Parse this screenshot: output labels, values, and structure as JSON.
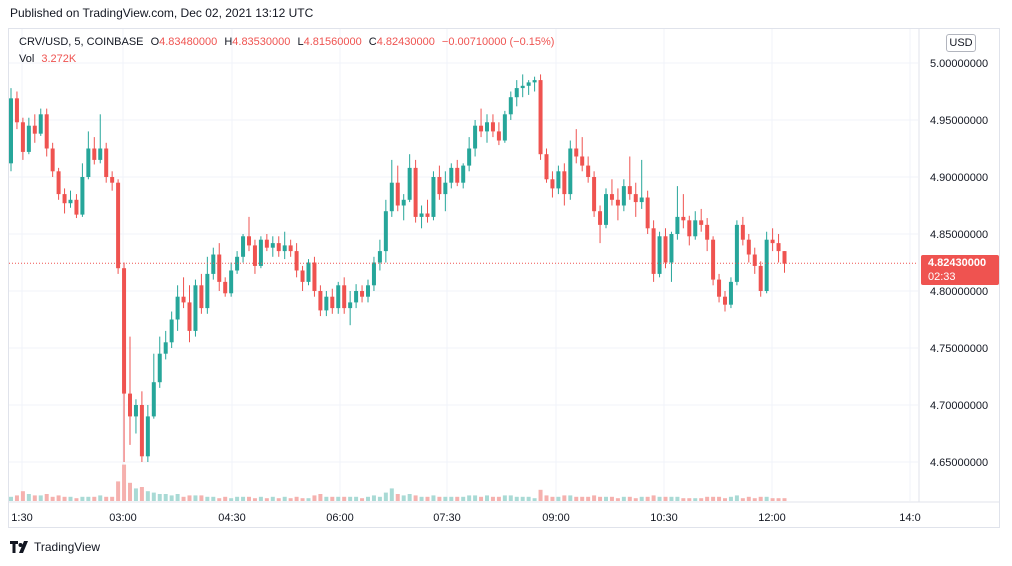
{
  "header": {
    "published": "Published on TradingView.com, Dec 02, 2021 13:12 UTC"
  },
  "legend": {
    "symbol": "CRV/USD, 5, COINBASE",
    "open_label": "O",
    "open": "4.83480000",
    "high_label": "H",
    "high": "4.83530000",
    "low_label": "L",
    "low": "4.81560000",
    "close_label": "C",
    "close": "4.82430000",
    "change": "−0.00710000 (−0.15%)",
    "vol_label": "Vol",
    "vol": "3.272K"
  },
  "currency_button": "USD",
  "last_price": {
    "value": "4.82430000",
    "countdown": "02:33"
  },
  "footer": {
    "brand": "TradingView"
  },
  "colors": {
    "up": "#26a69a",
    "down": "#ef5350",
    "vol_up": "#a9dad5",
    "vol_down": "#f5b1ae",
    "grid": "#f0f3fa"
  },
  "chart_data": {
    "type": "candlestick",
    "ylim": [
      4.6,
      5.02
    ],
    "y_ticks": [
      "5.00000000",
      "4.95000000",
      "4.90000000",
      "4.85000000",
      "4.80000000",
      "4.75000000",
      "4.70000000",
      "4.65000000"
    ],
    "x_ticks": [
      "1:30",
      "03:00",
      "04:30",
      "06:00",
      "07:30",
      "09:00",
      "10:30",
      "12:00",
      "14:0"
    ],
    "candles": [
      {
        "o": 4.912,
        "h": 4.978,
        "l": 4.905,
        "c": 4.969,
        "v": 0.3
      },
      {
        "o": 4.969,
        "h": 4.975,
        "l": 4.942,
        "c": 4.948,
        "v": 0.4
      },
      {
        "o": 4.948,
        "h": 4.952,
        "l": 4.915,
        "c": 4.922,
        "v": 0.7
      },
      {
        "o": 4.922,
        "h": 4.952,
        "l": 4.92,
        "c": 4.945,
        "v": 0.5
      },
      {
        "o": 4.945,
        "h": 4.955,
        "l": 4.93,
        "c": 4.938,
        "v": 0.4
      },
      {
        "o": 4.938,
        "h": 4.96,
        "l": 4.936,
        "c": 4.955,
        "v": 0.4
      },
      {
        "o": 4.955,
        "h": 4.96,
        "l": 4.918,
        "c": 4.925,
        "v": 0.5
      },
      {
        "o": 4.925,
        "h": 4.93,
        "l": 4.9,
        "c": 4.905,
        "v": 0.3
      },
      {
        "o": 4.905,
        "h": 4.908,
        "l": 4.88,
        "c": 4.885,
        "v": 0.4
      },
      {
        "o": 4.885,
        "h": 4.89,
        "l": 4.868,
        "c": 4.877,
        "v": 0.3
      },
      {
        "o": 4.877,
        "h": 4.888,
        "l": 4.873,
        "c": 4.88,
        "v": 0.3
      },
      {
        "o": 4.88,
        "h": 4.885,
        "l": 4.864,
        "c": 4.867,
        "v": 0.2
      },
      {
        "o": 4.867,
        "h": 4.912,
        "l": 4.865,
        "c": 4.9,
        "v": 0.3
      },
      {
        "o": 4.9,
        "h": 4.94,
        "l": 4.898,
        "c": 4.925,
        "v": 0.3
      },
      {
        "o": 4.925,
        "h": 4.935,
        "l": 4.911,
        "c": 4.915,
        "v": 0.3
      },
      {
        "o": 4.915,
        "h": 4.955,
        "l": 4.912,
        "c": 4.925,
        "v": 0.4
      },
      {
        "o": 4.925,
        "h": 4.93,
        "l": 4.895,
        "c": 4.9,
        "v": 0.3
      },
      {
        "o": 4.9,
        "h": 4.905,
        "l": 4.888,
        "c": 4.895,
        "v": 0.3
      },
      {
        "o": 4.895,
        "h": 4.898,
        "l": 4.815,
        "c": 4.82,
        "v": 1.4
      },
      {
        "o": 4.82,
        "h": 4.825,
        "l": 4.65,
        "c": 4.71,
        "v": 2.6
      },
      {
        "o": 4.71,
        "h": 4.76,
        "l": 4.665,
        "c": 4.69,
        "v": 1.3
      },
      {
        "o": 4.69,
        "h": 4.705,
        "l": 4.675,
        "c": 4.7,
        "v": 0.9
      },
      {
        "o": 4.7,
        "h": 4.712,
        "l": 4.65,
        "c": 4.655,
        "v": 1.0
      },
      {
        "o": 4.655,
        "h": 4.7,
        "l": 4.65,
        "c": 4.69,
        "v": 0.7
      },
      {
        "o": 4.69,
        "h": 4.745,
        "l": 4.688,
        "c": 4.72,
        "v": 0.6
      },
      {
        "o": 4.72,
        "h": 4.76,
        "l": 4.715,
        "c": 4.745,
        "v": 0.5
      },
      {
        "o": 4.745,
        "h": 4.765,
        "l": 4.74,
        "c": 4.755,
        "v": 0.5
      },
      {
        "o": 4.755,
        "h": 4.782,
        "l": 4.75,
        "c": 4.775,
        "v": 0.4
      },
      {
        "o": 4.775,
        "h": 4.805,
        "l": 4.765,
        "c": 4.795,
        "v": 0.5
      },
      {
        "o": 4.795,
        "h": 4.812,
        "l": 4.785,
        "c": 4.79,
        "v": 0.3
      },
      {
        "o": 4.79,
        "h": 4.805,
        "l": 4.755,
        "c": 4.765,
        "v": 0.4
      },
      {
        "o": 4.765,
        "h": 4.81,
        "l": 4.76,
        "c": 4.805,
        "v": 0.4
      },
      {
        "o": 4.805,
        "h": 4.815,
        "l": 4.78,
        "c": 4.785,
        "v": 0.4
      },
      {
        "o": 4.785,
        "h": 4.83,
        "l": 4.78,
        "c": 4.815,
        "v": 0.3
      },
      {
        "o": 4.815,
        "h": 4.838,
        "l": 4.81,
        "c": 4.832,
        "v": 0.3
      },
      {
        "o": 4.832,
        "h": 4.842,
        "l": 4.8,
        "c": 4.808,
        "v": 0.2
      },
      {
        "o": 4.808,
        "h": 4.812,
        "l": 4.795,
        "c": 4.798,
        "v": 0.3
      },
      {
        "o": 4.798,
        "h": 4.825,
        "l": 4.795,
        "c": 4.818,
        "v": 0.2
      },
      {
        "o": 4.818,
        "h": 4.835,
        "l": 4.815,
        "c": 4.83,
        "v": 0.3
      },
      {
        "o": 4.83,
        "h": 4.85,
        "l": 4.825,
        "c": 4.848,
        "v": 0.3
      },
      {
        "o": 4.848,
        "h": 4.865,
        "l": 4.835,
        "c": 4.84,
        "v": 0.3
      },
      {
        "o": 4.84,
        "h": 4.845,
        "l": 4.815,
        "c": 4.822,
        "v": 0.2
      },
      {
        "o": 4.822,
        "h": 4.848,
        "l": 4.82,
        "c": 4.845,
        "v": 0.3
      },
      {
        "o": 4.845,
        "h": 4.85,
        "l": 4.835,
        "c": 4.838,
        "v": 0.2
      },
      {
        "o": 4.838,
        "h": 4.848,
        "l": 4.83,
        "c": 4.842,
        "v": 0.3
      },
      {
        "o": 4.842,
        "h": 4.848,
        "l": 4.83,
        "c": 4.835,
        "v": 0.2
      },
      {
        "o": 4.835,
        "h": 4.852,
        "l": 4.828,
        "c": 4.84,
        "v": 0.3
      },
      {
        "o": 4.84,
        "h": 4.845,
        "l": 4.83,
        "c": 4.835,
        "v": 0.2
      },
      {
        "o": 4.835,
        "h": 4.842,
        "l": 4.812,
        "c": 4.818,
        "v": 0.3
      },
      {
        "o": 4.818,
        "h": 4.822,
        "l": 4.8,
        "c": 4.808,
        "v": 0.2
      },
      {
        "o": 4.808,
        "h": 4.828,
        "l": 4.805,
        "c": 4.825,
        "v": 0.2
      },
      {
        "o": 4.825,
        "h": 4.83,
        "l": 4.795,
        "c": 4.8,
        "v": 0.4
      },
      {
        "o": 4.8,
        "h": 4.805,
        "l": 4.778,
        "c": 4.783,
        "v": 0.5
      },
      {
        "o": 4.783,
        "h": 4.8,
        "l": 4.778,
        "c": 4.795,
        "v": 0.3
      },
      {
        "o": 4.795,
        "h": 4.802,
        "l": 4.78,
        "c": 4.785,
        "v": 0.3
      },
      {
        "o": 4.785,
        "h": 4.808,
        "l": 4.78,
        "c": 4.805,
        "v": 0.3
      },
      {
        "o": 4.805,
        "h": 4.812,
        "l": 4.78,
        "c": 4.785,
        "v": 0.3
      },
      {
        "o": 4.785,
        "h": 4.8,
        "l": 4.77,
        "c": 4.79,
        "v": 0.3
      },
      {
        "o": 4.79,
        "h": 4.806,
        "l": 4.785,
        "c": 4.8,
        "v": 0.3
      },
      {
        "o": 4.8,
        "h": 4.805,
        "l": 4.79,
        "c": 4.795,
        "v": 0.2
      },
      {
        "o": 4.795,
        "h": 4.81,
        "l": 4.79,
        "c": 4.805,
        "v": 0.3
      },
      {
        "o": 4.805,
        "h": 4.83,
        "l": 4.8,
        "c": 4.825,
        "v": 0.4
      },
      {
        "o": 4.825,
        "h": 4.845,
        "l": 4.818,
        "c": 4.835,
        "v": 0.3
      },
      {
        "o": 4.835,
        "h": 4.88,
        "l": 4.825,
        "c": 4.87,
        "v": 0.6
      },
      {
        "o": 4.87,
        "h": 4.915,
        "l": 4.865,
        "c": 4.895,
        "v": 0.9
      },
      {
        "o": 4.895,
        "h": 4.91,
        "l": 4.87,
        "c": 4.875,
        "v": 0.5
      },
      {
        "o": 4.875,
        "h": 4.885,
        "l": 4.862,
        "c": 4.88,
        "v": 0.4
      },
      {
        "o": 4.88,
        "h": 4.92,
        "l": 4.878,
        "c": 4.908,
        "v": 0.5
      },
      {
        "o": 4.908,
        "h": 4.915,
        "l": 4.86,
        "c": 4.865,
        "v": 0.4
      },
      {
        "o": 4.865,
        "h": 4.875,
        "l": 4.855,
        "c": 4.868,
        "v": 0.3
      },
      {
        "o": 4.868,
        "h": 4.88,
        "l": 4.86,
        "c": 4.865,
        "v": 0.3
      },
      {
        "o": 4.865,
        "h": 4.905,
        "l": 4.862,
        "c": 4.9,
        "v": 0.4
      },
      {
        "o": 4.9,
        "h": 4.91,
        "l": 4.88,
        "c": 4.885,
        "v": 0.3
      },
      {
        "o": 4.885,
        "h": 4.905,
        "l": 4.87,
        "c": 4.895,
        "v": 0.3
      },
      {
        "o": 4.895,
        "h": 4.912,
        "l": 4.89,
        "c": 4.908,
        "v": 0.3
      },
      {
        "o": 4.908,
        "h": 4.915,
        "l": 4.892,
        "c": 4.895,
        "v": 0.3
      },
      {
        "o": 4.895,
        "h": 4.912,
        "l": 4.89,
        "c": 4.91,
        "v": 0.3
      },
      {
        "o": 4.91,
        "h": 4.935,
        "l": 4.905,
        "c": 4.925,
        "v": 0.4
      },
      {
        "o": 4.925,
        "h": 4.95,
        "l": 4.918,
        "c": 4.945,
        "v": 0.4
      },
      {
        "o": 4.945,
        "h": 4.96,
        "l": 4.935,
        "c": 4.94,
        "v": 0.3
      },
      {
        "o": 4.94,
        "h": 4.955,
        "l": 4.93,
        "c": 4.948,
        "v": 0.4
      },
      {
        "o": 4.948,
        "h": 4.955,
        "l": 4.935,
        "c": 4.94,
        "v": 0.3
      },
      {
        "o": 4.94,
        "h": 4.948,
        "l": 4.928,
        "c": 4.932,
        "v": 0.3
      },
      {
        "o": 4.932,
        "h": 4.958,
        "l": 4.93,
        "c": 4.955,
        "v": 0.4
      },
      {
        "o": 4.955,
        "h": 4.975,
        "l": 4.95,
        "c": 4.97,
        "v": 0.4
      },
      {
        "o": 4.97,
        "h": 4.985,
        "l": 4.962,
        "c": 4.978,
        "v": 0.3
      },
      {
        "o": 4.978,
        "h": 4.99,
        "l": 4.97,
        "c": 4.98,
        "v": 0.3
      },
      {
        "o": 4.98,
        "h": 4.985,
        "l": 4.972,
        "c": 4.983,
        "v": 0.3
      },
      {
        "o": 4.983,
        "h": 4.988,
        "l": 4.975,
        "c": 4.985,
        "v": 0.2
      },
      {
        "o": 4.985,
        "h": 4.99,
        "l": 4.915,
        "c": 4.92,
        "v": 0.8
      },
      {
        "o": 4.92,
        "h": 4.925,
        "l": 4.895,
        "c": 4.898,
        "v": 0.4
      },
      {
        "o": 4.898,
        "h": 4.905,
        "l": 4.882,
        "c": 4.89,
        "v": 0.3
      },
      {
        "o": 4.89,
        "h": 4.91,
        "l": 4.885,
        "c": 4.905,
        "v": 0.3
      },
      {
        "o": 4.905,
        "h": 4.912,
        "l": 4.875,
        "c": 4.885,
        "v": 0.4
      },
      {
        "o": 4.885,
        "h": 4.932,
        "l": 4.88,
        "c": 4.925,
        "v": 0.4
      },
      {
        "o": 4.925,
        "h": 4.942,
        "l": 4.912,
        "c": 4.918,
        "v": 0.3
      },
      {
        "o": 4.918,
        "h": 4.935,
        "l": 4.905,
        "c": 4.91,
        "v": 0.3
      },
      {
        "o": 4.91,
        "h": 4.918,
        "l": 4.895,
        "c": 4.9,
        "v": 0.3
      },
      {
        "o": 4.9,
        "h": 4.905,
        "l": 4.865,
        "c": 4.87,
        "v": 0.4
      },
      {
        "o": 4.87,
        "h": 4.875,
        "l": 4.842,
        "c": 4.858,
        "v": 0.3
      },
      {
        "o": 4.858,
        "h": 4.89,
        "l": 4.855,
        "c": 4.885,
        "v": 0.3
      },
      {
        "o": 4.885,
        "h": 4.898,
        "l": 4.875,
        "c": 4.88,
        "v": 0.3
      },
      {
        "o": 4.88,
        "h": 4.89,
        "l": 4.862,
        "c": 4.875,
        "v": 0.2
      },
      {
        "o": 4.875,
        "h": 4.898,
        "l": 4.87,
        "c": 4.892,
        "v": 0.3
      },
      {
        "o": 4.892,
        "h": 4.918,
        "l": 4.88,
        "c": 4.885,
        "v": 0.3
      },
      {
        "o": 4.885,
        "h": 4.895,
        "l": 4.865,
        "c": 4.878,
        "v": 0.2
      },
      {
        "o": 4.878,
        "h": 4.915,
        "l": 4.872,
        "c": 4.882,
        "v": 0.3
      },
      {
        "o": 4.882,
        "h": 4.888,
        "l": 4.85,
        "c": 4.855,
        "v": 0.3
      },
      {
        "o": 4.855,
        "h": 4.862,
        "l": 4.808,
        "c": 4.815,
        "v": 0.4
      },
      {
        "o": 4.815,
        "h": 4.852,
        "l": 4.812,
        "c": 4.848,
        "v": 0.3
      },
      {
        "o": 4.848,
        "h": 4.855,
        "l": 4.82,
        "c": 4.825,
        "v": 0.3
      },
      {
        "o": 4.825,
        "h": 4.852,
        "l": 4.808,
        "c": 4.85,
        "v": 0.3
      },
      {
        "o": 4.85,
        "h": 4.892,
        "l": 4.845,
        "c": 4.865,
        "v": 0.3
      },
      {
        "o": 4.865,
        "h": 4.885,
        "l": 4.855,
        "c": 4.862,
        "v": 0.2
      },
      {
        "o": 4.862,
        "h": 4.866,
        "l": 4.84,
        "c": 4.848,
        "v": 0.2
      },
      {
        "o": 4.848,
        "h": 4.87,
        "l": 4.845,
        "c": 4.862,
        "v": 0.2
      },
      {
        "o": 4.862,
        "h": 4.872,
        "l": 4.852,
        "c": 4.858,
        "v": 0.2
      },
      {
        "o": 4.858,
        "h": 4.864,
        "l": 4.835,
        "c": 4.845,
        "v": 0.3
      },
      {
        "o": 4.845,
        "h": 4.848,
        "l": 4.805,
        "c": 4.81,
        "v": 0.3
      },
      {
        "o": 4.81,
        "h": 4.815,
        "l": 4.79,
        "c": 4.795,
        "v": 0.3
      },
      {
        "o": 4.795,
        "h": 4.8,
        "l": 4.782,
        "c": 4.788,
        "v": 0.2
      },
      {
        "o": 4.788,
        "h": 4.812,
        "l": 4.785,
        "c": 4.808,
        "v": 0.3
      },
      {
        "o": 4.808,
        "h": 4.862,
        "l": 4.805,
        "c": 4.858,
        "v": 0.4
      },
      {
        "o": 4.858,
        "h": 4.865,
        "l": 4.84,
        "c": 4.845,
        "v": 0.2
      },
      {
        "o": 4.845,
        "h": 4.85,
        "l": 4.825,
        "c": 4.832,
        "v": 0.3
      },
      {
        "o": 4.832,
        "h": 4.838,
        "l": 4.815,
        "c": 4.822,
        "v": 0.2
      },
      {
        "o": 4.822,
        "h": 4.826,
        "l": 4.795,
        "c": 4.8,
        "v": 0.3
      },
      {
        "o": 4.8,
        "h": 4.852,
        "l": 4.798,
        "c": 4.845,
        "v": 0.3
      },
      {
        "o": 4.845,
        "h": 4.855,
        "l": 4.835,
        "c": 4.842,
        "v": 0.2
      },
      {
        "o": 4.842,
        "h": 4.85,
        "l": 4.825,
        "c": 4.835,
        "v": 0.2
      },
      {
        "o": 4.835,
        "h": 4.835,
        "l": 4.816,
        "c": 4.824,
        "v": 0.2
      }
    ]
  }
}
